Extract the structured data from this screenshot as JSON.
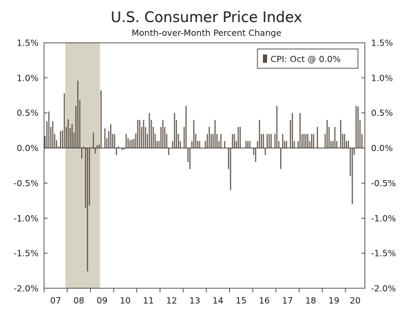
{
  "chart_data": {
    "type": "bar",
    "title": "U.S. Consumer Price Index",
    "subtitle": "Month-over-Month Percent Change",
    "legend": "CPI: Oct @ 0.0%",
    "legend_position": "top-right",
    "ylim": [
      -2.0,
      1.5
    ],
    "y_ticks": [
      1.5,
      1.0,
      0.5,
      0.0,
      -0.5,
      -1.0,
      -1.5,
      -2.0
    ],
    "y_tick_labels": [
      "1.5%",
      "1.0%",
      "0.5%",
      "0.0%",
      "-0.5%",
      "-1.0%",
      "-1.5%",
      "-2.0%"
    ],
    "x_tick_labels": [
      "07",
      "08",
      "09",
      "10",
      "11",
      "12",
      "13",
      "14",
      "15",
      "16",
      "17",
      "18",
      "19",
      "20"
    ],
    "x_range": {
      "start_year": 2007,
      "start_month": 1,
      "months": 166
    },
    "recession_shading": {
      "start_index": 11,
      "end_index": 29
    },
    "colors": {
      "bar": "#5a4e44",
      "recession": "#d6d2c4",
      "axis": "#333333",
      "text": "#1a1a1a"
    },
    "series": [
      {
        "name": "CPI",
        "values": [
          0.17,
          0.38,
          0.52,
          0.3,
          0.38,
          0.2,
          0.11,
          0.02,
          0.24,
          0.25,
          0.78,
          0.3,
          0.41,
          0.28,
          0.34,
          0.22,
          0.6,
          0.96,
          0.68,
          -0.15,
          0.02,
          -0.85,
          -1.76,
          -0.82,
          0.01,
          0.22,
          -0.08,
          0.04,
          0.05,
          0.82,
          0.0,
          0.28,
          0.14,
          0.24,
          0.34,
          0.2,
          0.2,
          -0.1,
          0.02,
          0.0,
          -0.03,
          -0.02,
          0.2,
          0.14,
          0.11,
          0.12,
          0.13,
          0.21,
          0.4,
          0.4,
          0.3,
          0.4,
          0.3,
          0.2,
          0.5,
          0.4,
          0.3,
          0.2,
          0.1,
          0.1,
          0.3,
          0.4,
          0.3,
          0.2,
          -0.1,
          0.0,
          0.1,
          0.5,
          0.4,
          0.2,
          0.1,
          0.0,
          0.3,
          0.6,
          -0.2,
          -0.3,
          0.1,
          0.4,
          0.2,
          0.1,
          0.1,
          0.0,
          0.0,
          0.1,
          0.2,
          0.3,
          0.2,
          0.2,
          0.4,
          0.2,
          0.1,
          0.2,
          0.0,
          0.1,
          0.0,
          -0.3,
          -0.6,
          0.2,
          0.2,
          0.1,
          0.3,
          0.3,
          0.0,
          0.0,
          0.1,
          0.1,
          0.1,
          0.0,
          -0.1,
          -0.2,
          0.1,
          0.4,
          0.2,
          0.2,
          -0.1,
          0.2,
          0.2,
          0.2,
          0.0,
          0.2,
          0.6,
          0.1,
          -0.3,
          0.2,
          0.1,
          0.1,
          0.0,
          0.4,
          0.5,
          0.1,
          0.0,
          0.1,
          0.5,
          0.2,
          0.2,
          0.2,
          0.2,
          0.1,
          0.2,
          0.2,
          0.0,
          0.3,
          0.0,
          0.0,
          0.0,
          0.2,
          0.4,
          0.3,
          0.1,
          0.1,
          0.3,
          0.1,
          0.0,
          0.4,
          0.2,
          0.2,
          0.1,
          0.1,
          -0.4,
          -0.8,
          -0.1,
          0.6,
          0.59,
          0.4,
          0.2,
          0.0
        ]
      }
    ]
  }
}
